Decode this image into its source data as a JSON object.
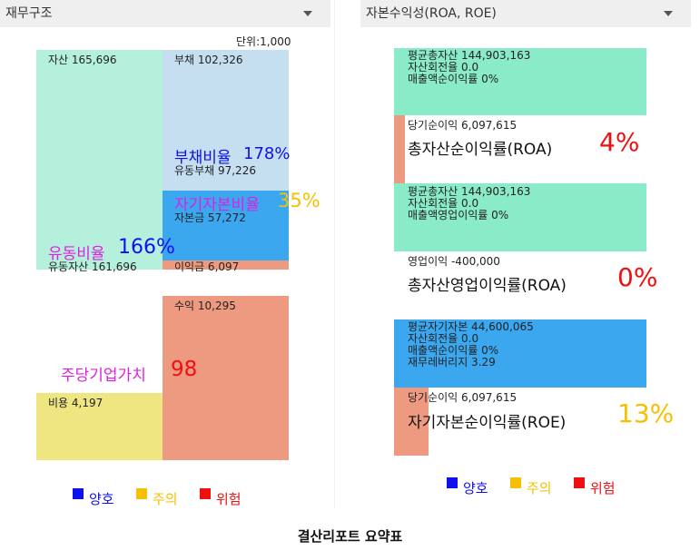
{
  "left_panel": {
    "dropdown_label": "재무구조",
    "unit_label": "단위:1,000",
    "assets_label": "자산 165,696",
    "liabilities_label": "부채 102,326",
    "debt_ratio_title": "부채비율",
    "debt_ratio_value": "178%",
    "current_liabilities_label": "유동부채 97,226",
    "equity_ratio_title": "자기자본비율",
    "equity_ratio_value": "35%",
    "capital_label": "자본금 57,272",
    "current_ratio_title": "유동비율",
    "current_ratio_value": "166%",
    "current_assets_label": "유동자산 161,696",
    "retained_earnings_label": "이익금 6,097",
    "revenue_label": "수익 10,295",
    "enterprise_value_title": "주당기업가치",
    "enterprise_value": "98",
    "expense_label": "비용 4,197"
  },
  "right_panel": {
    "dropdown_label": "자본수익성(ROA, ROE)",
    "roa1": {
      "lines": [
        "평균총자산  144,903,163",
        "자산회전율  0.0",
        "매출액순이익률  0%"
      ],
      "income_label": "당기순이익  6,097,615",
      "title": "총자산순이익률(ROA)",
      "value": "4%"
    },
    "roa2": {
      "lines": [
        "평균총자산  144,903,163",
        "자산회전율  0.0",
        "매출액영업이익률  0%"
      ],
      "income_label": "영업이익  -400,000",
      "title": "총자산영업이익률(ROA)",
      "value": "0%"
    },
    "roe": {
      "lines": [
        "평균자기자본  44,600,065",
        "자산회전율  0.0",
        "매출액순이익률  0%",
        "재무레버리지  3.29"
      ],
      "income_label": "당기순이익  6,097,615",
      "title": "자기자본순이익률(ROE)",
      "value": "13%"
    }
  },
  "legend": {
    "good": "양호",
    "caution": "주의",
    "danger": "위험"
  },
  "footer_title": "결산리포트 요약표",
  "colors": {
    "assets": "#b5f0dd",
    "liabilities": "#c5dff0",
    "equity": "#3aa7ee",
    "retained": "#ee9a80",
    "expense": "#efe682",
    "roa_green": "#8aebc9",
    "good": "#1010ee",
    "caution": "#f5c000",
    "danger": "#ee1010",
    "ratio_magenta": "#e01fe0"
  }
}
